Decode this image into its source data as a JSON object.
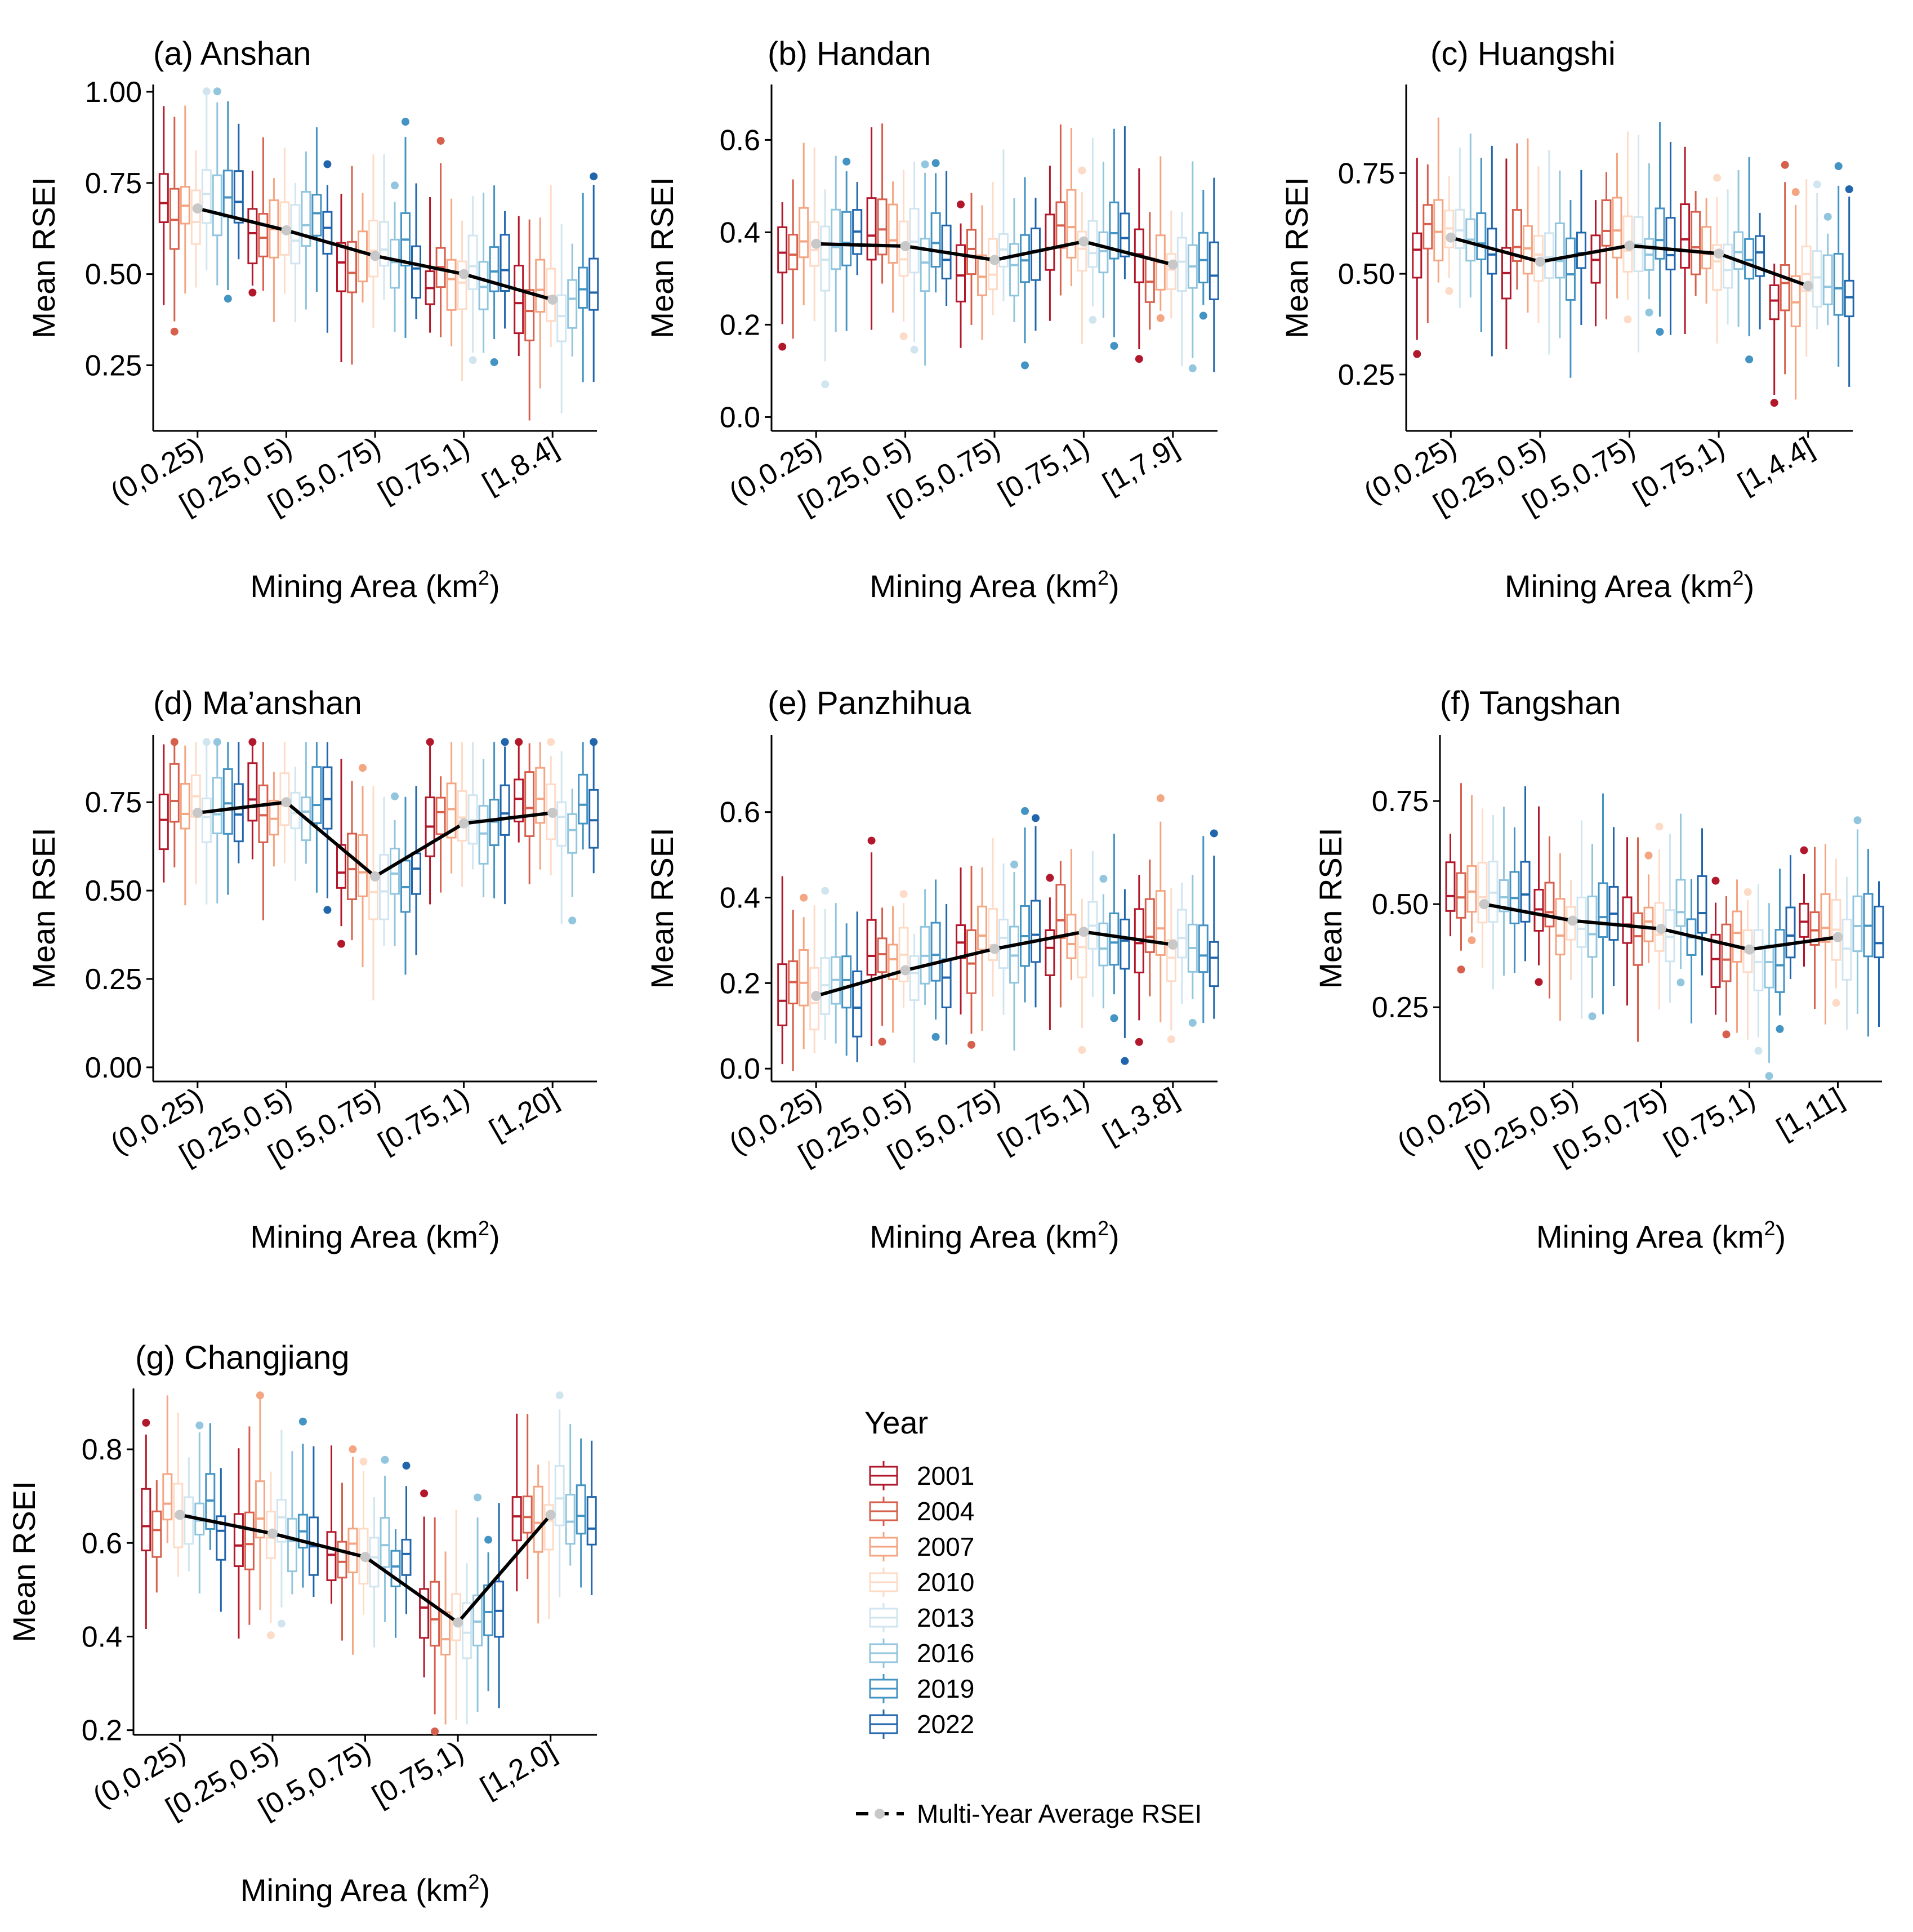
{
  "figure": {
    "units_word": "Mining Area (km",
    "units_sup": "2",
    "units_close": ")"
  },
  "legend": {
    "title": "Year",
    "years": [
      "2001",
      "2004",
      "2007",
      "2010",
      "2013",
      "2016",
      "2019",
      "2022"
    ],
    "colors": [
      "#b2182b",
      "#d6604d",
      "#f4a582",
      "#fddbc7",
      "#d1e5f0",
      "#92c5de",
      "#4393c3",
      "#2166ac"
    ],
    "avg_label": "Multi-Year Average RSEI"
  },
  "chart_data": [
    {
      "title": "(a) Anshan",
      "type": "box",
      "ylabel": "Mean RSEI",
      "xlabel": "Mining Area (km2)",
      "categories": [
        "(0,0.25)",
        "[0.25,0.5)",
        "[0.5,0.75)",
        "[0.75,1)",
        "[1,8.4]"
      ],
      "ylim": [
        0.07,
        1.02
      ],
      "yticks": [
        0.25,
        0.5,
        0.75,
        1.0
      ],
      "ytick_labels": [
        "0.25",
        "0.50",
        "0.75",
        "1.00"
      ],
      "averages": [
        0.68,
        0.62,
        0.55,
        0.5,
        0.43
      ]
    },
    {
      "title": "(b) Handan",
      "type": "box",
      "ylabel": "Mean RSEI",
      "xlabel": "Mining Area (km2)",
      "categories": [
        "(0,0.25)",
        "[0.25,0.5)",
        "[0.5,0.75)",
        "[0.75,1)",
        "[1,7.9]"
      ],
      "ylim": [
        -0.03,
        0.72
      ],
      "yticks": [
        0.0,
        0.2,
        0.4,
        0.6
      ],
      "ytick_labels": [
        "0.0",
        "0.2",
        "0.4",
        "0.6"
      ],
      "averages": [
        0.375,
        0.37,
        0.34,
        0.38,
        0.33
      ]
    },
    {
      "title": "(c) Huangshi",
      "type": "box",
      "ylabel": "Mean RSEI",
      "xlabel": "Mining Area (km2)",
      "categories": [
        "(0,0.25)",
        "[0.25,0.5)",
        "[0.5,0.75)",
        "[0.75,1)",
        "[1,4.4]"
      ],
      "ylim": [
        0.11,
        0.97
      ],
      "yticks": [
        0.25,
        0.5,
        0.75
      ],
      "ytick_labels": [
        "0.25",
        "0.50",
        "0.75"
      ],
      "averages": [
        0.59,
        0.53,
        0.57,
        0.55,
        0.47
      ]
    },
    {
      "title": "(d) Ma’anshan",
      "type": "box",
      "ylabel": "Mean RSEI",
      "xlabel": "Mining Area (km2)",
      "categories": [
        "(0,0.25)",
        "[0.25,0.5)",
        "[0.5,0.75)",
        "[0.75,1)",
        "[1,20]"
      ],
      "ylim": [
        -0.04,
        0.94
      ],
      "yticks": [
        0.0,
        0.25,
        0.5,
        0.75
      ],
      "ytick_labels": [
        "0.00",
        "0.25",
        "0.50",
        "0.75"
      ],
      "averages": [
        0.72,
        0.75,
        0.54,
        0.69,
        0.72
      ]
    },
    {
      "title": "(e) Panzhihua",
      "type": "box",
      "ylabel": "Mean RSEI",
      "xlabel": "Mining Area (km2)",
      "categories": [
        "(0,0.25)",
        "[0.25,0.5)",
        "[0.5,0.75)",
        "[0.75,1)",
        "[1,3.8]"
      ],
      "ylim": [
        -0.03,
        0.78
      ],
      "yticks": [
        0.0,
        0.2,
        0.4,
        0.6
      ],
      "ytick_labels": [
        "0.0",
        "0.2",
        "0.4",
        "0.6"
      ],
      "averages": [
        0.17,
        0.23,
        0.28,
        0.32,
        0.29
      ]
    },
    {
      "title": "(f) Tangshan",
      "type": "box",
      "ylabel": "Mean RSEI",
      "xlabel": "Mining Area (km2)",
      "categories": [
        "(0,0.25)",
        "[0.25,0.5)",
        "[0.5,0.75)",
        "[0.75,1)",
        "[1,11]"
      ],
      "ylim": [
        0.07,
        0.91
      ],
      "yticks": [
        0.25,
        0.5,
        0.75
      ],
      "ytick_labels": [
        "0.25",
        "0.50",
        "0.75"
      ],
      "averages": [
        0.5,
        0.46,
        0.44,
        0.39,
        0.42
      ]
    },
    {
      "title": "(g) Changjiang",
      "type": "box",
      "ylabel": "Mean RSEI",
      "xlabel": "Mining Area (km2)",
      "categories": [
        "(0,0.25)",
        "[0.25,0.5)",
        "[0.5,0.75)",
        "[0.75,1)",
        "[1,2.0]"
      ],
      "ylim": [
        0.19,
        0.93
      ],
      "yticks": [
        0.2,
        0.4,
        0.6,
        0.8
      ],
      "ytick_labels": [
        "0.2",
        "0.4",
        "0.6",
        "0.8"
      ],
      "averages": [
        0.66,
        0.62,
        0.57,
        0.43,
        0.66
      ]
    }
  ]
}
